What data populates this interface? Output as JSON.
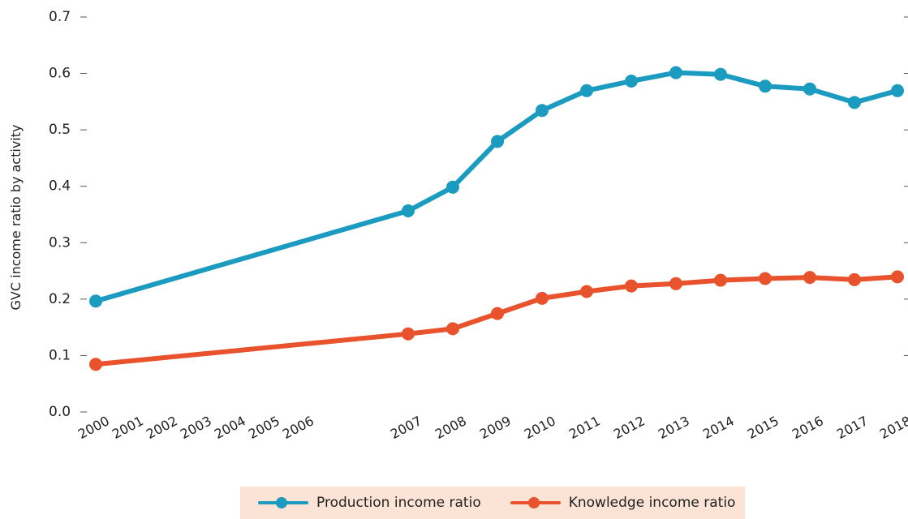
{
  "chart_data": {
    "type": "line",
    "categories": [
      "2000",
      "2001",
      "2002",
      "2003",
      "2004",
      "2005",
      "2006",
      "2007",
      "2008",
      "2009",
      "2010",
      "2011",
      "2012",
      "2013",
      "2014",
      "2015",
      "2016",
      "2017",
      "2018"
    ],
    "ylabel": "GVC income ratio by activity",
    "ylim": [
      0,
      0.7
    ],
    "yticks": [
      "0.0",
      "0.1",
      "0.2",
      "0.3",
      "0.4",
      "0.5",
      "0.6",
      "0.7"
    ],
    "legend_position": "bottom",
    "series": [
      {
        "name": "Production income ratio",
        "color": "#1a9bbf",
        "points": [
          {
            "x": "2000",
            "y": 0.195
          },
          {
            "x": "2007",
            "y": 0.355
          },
          {
            "x": "2008",
            "y": 0.397
          },
          {
            "x": "2009",
            "y": 0.478
          },
          {
            "x": "2010",
            "y": 0.533
          },
          {
            "x": "2011",
            "y": 0.568
          },
          {
            "x": "2012",
            "y": 0.585
          },
          {
            "x": "2013",
            "y": 0.6
          },
          {
            "x": "2014",
            "y": 0.597
          },
          {
            "x": "2015",
            "y": 0.576
          },
          {
            "x": "2016",
            "y": 0.571
          },
          {
            "x": "2017",
            "y": 0.547
          },
          {
            "x": "2018",
            "y": 0.568
          }
        ]
      },
      {
        "name": "Knowledge income ratio",
        "color": "#e8522c",
        "points": [
          {
            "x": "2000",
            "y": 0.083
          },
          {
            "x": "2007",
            "y": 0.137
          },
          {
            "x": "2008",
            "y": 0.146
          },
          {
            "x": "2009",
            "y": 0.173
          },
          {
            "x": "2010",
            "y": 0.2
          },
          {
            "x": "2011",
            "y": 0.212
          },
          {
            "x": "2012",
            "y": 0.222
          },
          {
            "x": "2013",
            "y": 0.226
          },
          {
            "x": "2014",
            "y": 0.232
          },
          {
            "x": "2015",
            "y": 0.235
          },
          {
            "x": "2016",
            "y": 0.237
          },
          {
            "x": "2017",
            "y": 0.233
          },
          {
            "x": "2018",
            "y": 0.238
          }
        ]
      }
    ]
  }
}
